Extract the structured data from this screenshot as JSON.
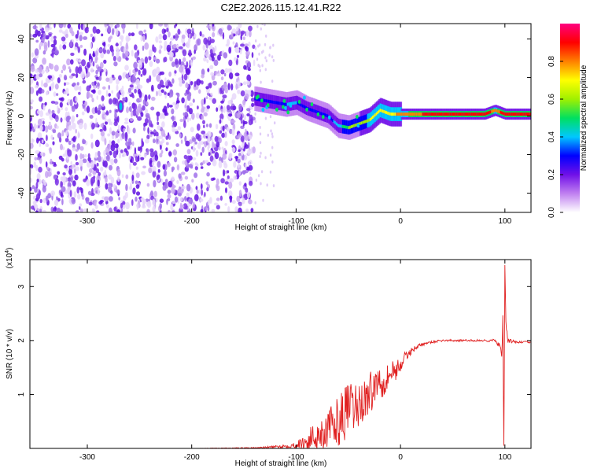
{
  "title": "C2E2.2026.115.12.41.R22",
  "chart_data": [
    {
      "type": "heatmap",
      "xlabel": "Height of straight line (km)",
      "ylabel": "Frequency (Hz)",
      "xlim": [
        -355,
        125
      ],
      "ylim": [
        -50,
        48
      ],
      "xticks": [
        -300,
        -200,
        -100,
        0,
        100
      ],
      "yticks": [
        -40,
        -20,
        0,
        20,
        40
      ],
      "colorbar": {
        "label": "Normalized spectral amplitude",
        "range": [
          0,
          1
        ],
        "ticks": [
          0.0,
          0.2,
          0.4,
          0.6,
          0.8
        ],
        "tick_labels": [
          "0.0",
          "0.2",
          "0.4",
          "0.6",
          "0.8"
        ],
        "colors": [
          "#ffffff",
          "#c080f0",
          "#7010e8",
          "#0000ff",
          "#00c8ff",
          "#00e060",
          "#a0f000",
          "#ffff00",
          "#ff8000",
          "#ff0000",
          "#ff0080"
        ]
      },
      "noise_region_x": [
        -355,
        -140
      ],
      "ridge": {
        "x": [
          -140,
          -130,
          -120,
          -110,
          -100,
          -90,
          -80,
          -70,
          -60,
          -50,
          -40,
          -30,
          -20,
          -10,
          0,
          20,
          40,
          60,
          80,
          90,
          100,
          125
        ],
        "hz": [
          9,
          8,
          7,
          6,
          7,
          4,
          2,
          0,
          -5,
          -6,
          -4,
          -2,
          3,
          1,
          1,
          1,
          1,
          1,
          1,
          3,
          1,
          1
        ],
        "amplitude": [
          0.3,
          0.3,
          0.32,
          0.35,
          0.35,
          0.3,
          0.32,
          0.3,
          0.4,
          0.55,
          0.6,
          0.65,
          0.75,
          0.7,
          0.8,
          0.85,
          0.88,
          0.92,
          0.93,
          0.8,
          0.9,
          0.92
        ]
      },
      "isolated_blob": {
        "x": -268,
        "hz": 5
      }
    },
    {
      "type": "line",
      "xlabel": "Height of straight line (km)",
      "ylabel": "SNR (10 * v/v)",
      "y_multiplier_label": "(x10",
      "y_multiplier_exp": "4",
      "xlim": [
        -355,
        125
      ],
      "ylim": [
        0,
        3.5
      ],
      "xticks": [
        -300,
        -200,
        -100,
        0,
        100
      ],
      "yticks": [
        1,
        2,
        3
      ],
      "series": [
        {
          "color": "#e02020",
          "x": [
            -355,
            -200,
            -140,
            -120,
            -100,
            -90,
            -80,
            -70,
            -60,
            -55,
            -50,
            -45,
            -40,
            -35,
            -30,
            -25,
            -20,
            -15,
            -10,
            -5,
            0,
            5,
            10,
            15,
            20,
            25,
            30,
            40,
            60,
            80,
            90,
            95,
            97,
            98,
            99,
            100,
            101,
            103,
            110,
            125
          ],
          "y": [
            0.0,
            0.0,
            0.01,
            0.03,
            0.06,
            0.12,
            0.25,
            0.35,
            0.5,
            0.6,
            0.75,
            0.7,
            0.8,
            0.9,
            1.0,
            1.15,
            1.3,
            1.25,
            1.4,
            1.45,
            1.55,
            1.7,
            1.8,
            1.88,
            1.92,
            1.95,
            1.97,
            2.0,
            2.0,
            2.0,
            2.0,
            1.9,
            1.7,
            2.4,
            0.05,
            3.4,
            2.3,
            2.0,
            1.97,
            1.97
          ],
          "noise_amplitude": [
            0.0,
            0.0,
            0.01,
            0.02,
            0.05,
            0.2,
            0.3,
            0.35,
            0.45,
            0.5,
            0.5,
            0.45,
            0.45,
            0.4,
            0.4,
            0.35,
            0.35,
            0.3,
            0.25,
            0.2,
            0.15,
            0.1,
            0.06,
            0.04,
            0.03,
            0.02,
            0.02,
            0.02,
            0.02,
            0.02,
            0.03,
            0.05,
            0.1,
            0.1,
            0.0,
            0.0,
            0.1,
            0.05,
            0.02,
            0.02
          ]
        }
      ]
    }
  ]
}
